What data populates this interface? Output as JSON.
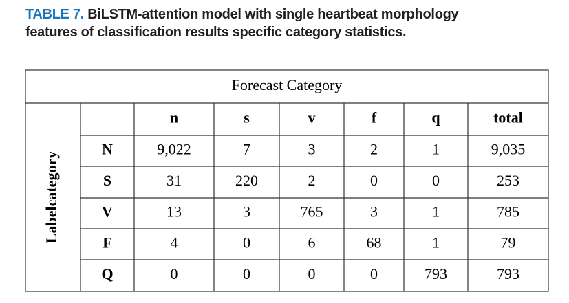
{
  "caption": {
    "label": "TABLE 7.",
    "lines": [
      "BiLSTM-attention model with single heartbeat morphology",
      "features of classification results specific category statistics."
    ]
  },
  "table": {
    "group_header": "Forecast Category",
    "side_header": "Labelcategory",
    "columns": [
      "n",
      "s",
      "v",
      "f",
      "q",
      "total"
    ],
    "rows": [
      {
        "label": "N",
        "cells": [
          "9,022",
          "7",
          "3",
          "2",
          "1",
          "9,035"
        ]
      },
      {
        "label": "S",
        "cells": [
          "31",
          "220",
          "2",
          "0",
          "0",
          "253"
        ]
      },
      {
        "label": "V",
        "cells": [
          "13",
          "3",
          "765",
          "3",
          "1",
          "785"
        ]
      },
      {
        "label": "F",
        "cells": [
          "4",
          "0",
          "6",
          "68",
          "1",
          "79"
        ]
      },
      {
        "label": "Q",
        "cells": [
          "0",
          "0",
          "0",
          "0",
          "793",
          "793"
        ]
      }
    ]
  }
}
